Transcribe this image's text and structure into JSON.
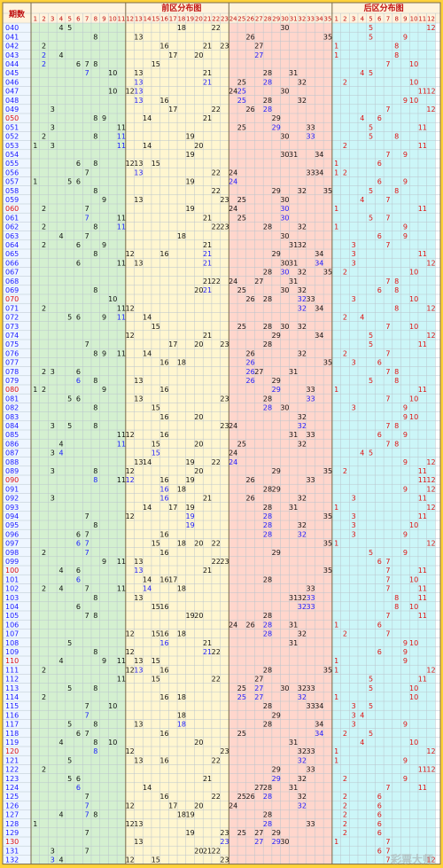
{
  "chart_data": {
    "type": "table",
    "header": {
      "period_label": "期数",
      "front_title": "前区分布图",
      "back_title": "后区分布图",
      "front_columns": [
        1,
        2,
        3,
        4,
        5,
        6,
        7,
        8,
        9,
        10,
        11,
        12,
        13,
        14,
        15,
        16,
        17,
        18,
        19,
        20,
        21,
        22,
        23,
        24,
        25,
        26,
        27,
        28,
        29,
        30,
        31,
        32,
        33,
        34,
        35
      ],
      "back_columns": [
        1,
        2,
        3,
        4,
        5,
        6,
        7,
        8,
        9,
        10,
        11,
        12
      ]
    },
    "front_zone_colors": [
      "#d4f0d0",
      "#fff6d0",
      "#ffd6cc",
      "#ccf6f8"
    ],
    "number_colors": {
      "normal": "#111111",
      "repeat": "#1a1aff",
      "back": "#e01010",
      "period": "#1a1aff",
      "period_highlight": "#e01010"
    },
    "highlight_periods": [
      "050",
      "060",
      "070",
      "080",
      "090",
      "100",
      "110",
      "120",
      "130"
    ],
    "watermark": "彩票大师",
    "rows": [
      {
        "p": "040",
        "f": [
          4,
          5,
          18,
          22,
          30
        ],
        "b": [
          5,
          12
        ]
      },
      {
        "p": "041",
        "f": [
          8,
          13,
          26,
          35
        ],
        "b": [
          5,
          9
        ]
      },
      {
        "p": "042",
        "f": [
          2,
          16,
          21,
          23,
          27
        ],
        "b": [
          1,
          8
        ]
      },
      {
        "p": "043",
        "f": [
          2,
          4,
          17,
          20,
          27
        ],
        "b": [
          1,
          8
        ]
      },
      {
        "p": "044",
        "f": [
          2,
          6,
          7,
          8,
          15
        ],
        "b": [
          7,
          10
        ]
      },
      {
        "p": "045",
        "f": [
          7,
          10,
          13,
          21,
          28,
          31
        ],
        "b": [
          4,
          5
        ]
      },
      {
        "p": "046",
        "f": [
          13,
          21,
          25,
          28,
          32
        ],
        "b": [
          2,
          10
        ]
      },
      {
        "p": "047",
        "f": [
          10,
          12,
          13,
          24,
          25,
          30
        ],
        "b": [
          11,
          12
        ]
      },
      {
        "p": "048",
        "f": [
          13,
          16,
          25,
          28,
          32
        ],
        "b": [
          9,
          10
        ]
      },
      {
        "p": "049",
        "f": [
          3,
          17,
          22,
          26,
          28
        ],
        "b": [
          7,
          12
        ]
      },
      {
        "p": "050",
        "f": [
          8,
          9,
          14,
          21,
          29
        ],
        "b": [
          4,
          6
        ]
      },
      {
        "p": "051",
        "f": [
          3,
          11,
          25,
          29,
          33
        ],
        "b": [
          5,
          11
        ]
      },
      {
        "p": "052",
        "f": [
          2,
          8,
          11,
          19,
          30,
          33
        ],
        "b": [
          5,
          8
        ]
      },
      {
        "p": "053",
        "f": [
          1,
          3,
          11,
          14,
          20
        ],
        "b": [
          2,
          11
        ]
      },
      {
        "p": "054",
        "f": [
          19,
          30,
          31,
          34
        ],
        "b": [
          7,
          9
        ]
      },
      {
        "p": "055",
        "f": [
          6,
          8,
          12,
          13,
          15
        ],
        "b": [
          1,
          6
        ]
      },
      {
        "p": "056",
        "f": [
          7,
          13,
          22,
          24,
          33,
          34
        ],
        "b": [
          1,
          2
        ]
      },
      {
        "p": "057",
        "f": [
          1,
          5,
          6,
          19,
          24
        ],
        "b": [
          6,
          9
        ]
      },
      {
        "p": "058",
        "f": [
          8,
          22,
          29,
          32,
          35
        ],
        "b": [
          5,
          8
        ]
      },
      {
        "p": "059",
        "f": [
          9,
          13,
          23,
          25,
          30
        ],
        "b": [
          4,
          7
        ]
      },
      {
        "p": "060",
        "f": [
          2,
          7,
          19,
          24,
          30
        ],
        "b": [
          1,
          11
        ]
      },
      {
        "p": "061",
        "f": [
          7,
          11,
          21,
          25,
          30
        ],
        "b": [
          5,
          7
        ]
      },
      {
        "p": "062",
        "f": [
          2,
          8,
          11,
          22,
          23,
          28,
          32
        ],
        "b": [
          1,
          9
        ]
      },
      {
        "p": "063",
        "f": [
          4,
          7,
          18,
          30
        ],
        "b": [
          6,
          9
        ]
      },
      {
        "p": "064",
        "f": [
          2,
          6,
          9,
          21,
          31,
          32
        ],
        "b": [
          3,
          7
        ]
      },
      {
        "p": "065",
        "f": [
          8,
          12,
          16,
          21,
          29,
          34
        ],
        "b": [
          3,
          11
        ]
      },
      {
        "p": "066",
        "f": [
          6,
          11,
          13,
          21,
          30,
          31,
          34
        ],
        "b": [
          3,
          12
        ]
      },
      {
        "p": "067",
        "f": [
          28,
          30,
          32,
          35
        ],
        "b": [
          2,
          10
        ]
      },
      {
        "p": "068",
        "f": [
          21,
          22,
          24,
          27,
          31
        ],
        "b": [
          7,
          8
        ]
      },
      {
        "p": "069",
        "f": [
          8,
          20,
          21,
          25,
          30,
          32
        ],
        "b": [
          6,
          8
        ]
      },
      {
        "p": "070",
        "f": [
          10,
          26,
          28,
          32,
          33
        ],
        "b": [
          3,
          10
        ]
      },
      {
        "p": "071",
        "f": [
          2,
          11,
          12,
          32,
          34
        ],
        "b": [
          8,
          12
        ]
      },
      {
        "p": "072",
        "f": [
          5,
          6,
          9,
          11,
          14
        ],
        "b": [
          2,
          4
        ]
      },
      {
        "p": "073",
        "f": [
          15,
          25,
          28,
          30,
          32
        ],
        "b": [
          7,
          10
        ]
      },
      {
        "p": "074",
        "f": [
          12,
          21,
          29,
          34
        ],
        "b": [
          5,
          12
        ]
      },
      {
        "p": "075",
        "f": [
          7,
          17,
          20,
          23,
          28
        ],
        "b": [
          5,
          11
        ]
      },
      {
        "p": "076",
        "f": [
          8,
          9,
          11,
          14,
          26,
          32
        ],
        "b": [
          2,
          7
        ]
      },
      {
        "p": "077",
        "f": [
          16,
          18,
          26,
          35
        ],
        "b": [
          3,
          6
        ]
      },
      {
        "p": "078",
        "f": [
          2,
          3,
          6,
          26,
          27,
          31
        ],
        "b": [
          7,
          8
        ]
      },
      {
        "p": "079",
        "f": [
          6,
          8,
          13,
          26,
          29
        ],
        "b": [
          5,
          8
        ]
      },
      {
        "p": "080",
        "f": [
          1,
          2,
          9,
          16,
          29,
          33
        ],
        "b": [
          1,
          11
        ]
      },
      {
        "p": "081",
        "f": [
          5,
          6,
          13,
          23,
          28,
          33
        ],
        "b": [
          7,
          10
        ]
      },
      {
        "p": "082",
        "f": [
          8,
          15,
          28,
          30
        ],
        "b": [
          3,
          9
        ]
      },
      {
        "p": "083",
        "f": [
          16,
          20,
          32
        ],
        "b": [
          9,
          10
        ]
      },
      {
        "p": "084",
        "f": [
          3,
          5,
          8,
          23,
          24,
          32
        ],
        "b": [
          7,
          8
        ]
      },
      {
        "p": "085",
        "f": [
          11,
          12,
          16,
          31,
          33
        ],
        "b": [
          6,
          9
        ]
      },
      {
        "p": "086",
        "f": [
          4,
          11,
          15,
          20,
          25,
          32
        ],
        "b": [
          7,
          8
        ]
      },
      {
        "p": "087",
        "f": [
          3,
          4,
          15,
          24
        ],
        "b": [
          4,
          5
        ]
      },
      {
        "p": "088",
        "f": [
          13,
          14,
          19,
          22,
          24
        ],
        "b": [
          9,
          12
        ]
      },
      {
        "p": "089",
        "f": [
          3,
          8,
          12,
          20,
          29,
          35
        ],
        "b": [
          2,
          11
        ]
      },
      {
        "p": "090",
        "f": [
          8,
          11,
          12,
          16,
          19,
          26,
          33
        ],
        "b": [
          11,
          12
        ]
      },
      {
        "p": "091",
        "f": [
          16,
          18,
          28,
          29
        ],
        "b": [
          9,
          12
        ]
      },
      {
        "p": "092",
        "f": [
          3,
          16,
          21,
          26,
          32
        ],
        "b": [
          3,
          11
        ]
      },
      {
        "p": "093",
        "f": [
          14,
          17,
          19,
          28,
          31
        ],
        "b": [
          1,
          12
        ]
      },
      {
        "p": "094",
        "f": [
          7,
          12,
          19,
          28,
          35
        ],
        "b": [
          3,
          11
        ]
      },
      {
        "p": "095",
        "f": [
          8,
          19,
          28,
          32
        ],
        "b": [
          3,
          10
        ]
      },
      {
        "p": "096",
        "f": [
          6,
          7,
          16,
          28,
          32
        ],
        "b": [
          3,
          9
        ]
      },
      {
        "p": "097",
        "f": [
          6,
          7,
          15,
          18,
          20,
          22,
          35
        ],
        "b": [
          1,
          12
        ]
      },
      {
        "p": "098",
        "f": [
          2,
          7,
          16,
          29
        ],
        "b": [
          5,
          9
        ]
      },
      {
        "p": "099",
        "f": [
          9,
          11,
          13,
          22,
          23
        ],
        "b": [
          6,
          7
        ]
      },
      {
        "p": "100",
        "f": [
          4,
          6,
          13,
          21,
          35
        ],
        "b": [
          7,
          11
        ]
      },
      {
        "p": "101",
        "f": [
          6,
          14,
          16,
          17,
          28
        ],
        "b": [
          7,
          10
        ]
      },
      {
        "p": "102",
        "f": [
          2,
          4,
          7,
          11,
          14,
          18,
          33
        ],
        "b": [
          7,
          11
        ]
      },
      {
        "p": "103",
        "f": [
          8,
          13,
          31,
          32,
          33
        ],
        "b": [
          8,
          11
        ]
      },
      {
        "p": "104",
        "f": [
          6,
          15,
          16,
          32,
          33
        ],
        "b": [
          8,
          10
        ]
      },
      {
        "p": "105",
        "f": [
          7,
          8,
          19,
          20,
          28
        ],
        "b": [
          7,
          11
        ]
      },
      {
        "p": "106",
        "f": [
          24,
          26,
          28,
          31
        ],
        "b": [
          1,
          6
        ]
      },
      {
        "p": "107",
        "f": [
          12,
          15,
          16,
          18,
          28,
          32
        ],
        "b": [
          2,
          7
        ]
      },
      {
        "p": "108",
        "f": [
          5,
          16,
          21,
          31
        ],
        "b": [
          9,
          10
        ]
      },
      {
        "p": "109",
        "f": [
          8,
          12,
          21,
          22
        ],
        "b": [
          6,
          9
        ]
      },
      {
        "p": "110",
        "f": [
          4,
          9,
          11,
          13,
          15
        ],
        "b": [
          1,
          9
        ]
      },
      {
        "p": "111",
        "f": [
          2,
          12,
          13,
          16,
          28,
          35
        ],
        "b": [
          1,
          12
        ]
      },
      {
        "p": "112",
        "f": [
          11,
          15,
          22,
          27
        ],
        "b": [
          5,
          11
        ]
      },
      {
        "p": "113",
        "f": [
          5,
          8,
          25,
          27,
          30,
          32,
          33
        ],
        "b": [
          5,
          10
        ]
      },
      {
        "p": "114",
        "f": [
          2,
          16,
          18,
          25,
          27,
          32
        ],
        "b": [
          1,
          10
        ]
      },
      {
        "p": "115",
        "f": [
          7,
          10,
          28,
          33,
          34
        ],
        "b": [
          3,
          5
        ]
      },
      {
        "p": "116",
        "f": [
          7,
          18,
          29
        ],
        "b": [
          3,
          4
        ]
      },
      {
        "p": "117",
        "f": [
          5,
          8,
          13,
          18,
          28,
          34
        ],
        "b": [
          3,
          9
        ]
      },
      {
        "p": "118",
        "f": [
          6,
          7,
          16,
          25,
          34
        ],
        "b": [
          2,
          5
        ]
      },
      {
        "p": "119",
        "f": [
          4,
          8,
          10,
          20,
          31
        ],
        "b": [
          4,
          10
        ]
      },
      {
        "p": "120",
        "f": [
          8,
          12,
          23,
          32,
          33
        ],
        "b": [
          1,
          12
        ]
      },
      {
        "p": "121",
        "f": [
          5,
          13,
          16,
          22,
          32
        ],
        "b": [
          1,
          9
        ]
      },
      {
        "p": "122",
        "f": [
          2,
          29,
          33
        ],
        "b": [
          11,
          12
        ]
      },
      {
        "p": "123",
        "f": [
          5,
          6,
          21,
          29,
          32
        ],
        "b": [
          2,
          9
        ]
      },
      {
        "p": "124",
        "f": [
          6,
          14,
          27,
          28,
          31
        ],
        "b": [
          7,
          11
        ]
      },
      {
        "p": "125",
        "f": [
          7,
          16,
          22,
          25,
          26,
          28,
          32
        ],
        "b": [
          2,
          6
        ]
      },
      {
        "p": "126",
        "f": [
          7,
          12,
          17,
          20,
          24,
          32
        ],
        "b": [
          2,
          6
        ]
      },
      {
        "p": "127",
        "f": [
          4,
          7,
          8,
          18,
          19,
          28
        ],
        "b": [
          2,
          6
        ]
      },
      {
        "p": "128",
        "f": [
          1,
          12,
          13,
          28,
          33
        ],
        "b": [
          2,
          6
        ]
      },
      {
        "p": "129",
        "f": [
          7,
          19,
          23,
          25,
          27,
          29
        ],
        "b": [
          2,
          6
        ]
      },
      {
        "p": "130",
        "f": [
          13,
          23,
          27,
          29,
          30
        ],
        "b": [
          1,
          7
        ]
      },
      {
        "p": "131",
        "f": [
          3,
          7,
          20,
          21,
          22
        ],
        "b": [
          6,
          7
        ]
      },
      {
        "p": "132",
        "f": [
          3,
          4,
          12,
          15,
          23
        ],
        "b": [
          7,
          12
        ]
      }
    ]
  }
}
